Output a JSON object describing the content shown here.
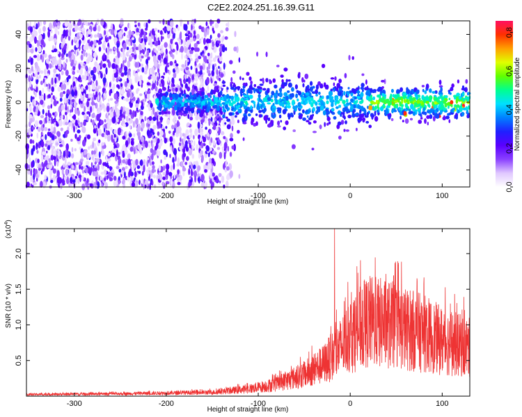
{
  "title": "C2E2.2024.251.16.39.G11",
  "chart_data": [
    {
      "type": "heatmap",
      "name": "spectrogram",
      "xlabel": "Height of straight line (km)",
      "ylabel": "Frequency (Hz)",
      "xlim": [
        -352,
        130
      ],
      "ylim": [
        -50,
        48
      ],
      "x_ticks": [
        -300,
        -200,
        -100,
        0,
        100
      ],
      "y_ticks": [
        -40,
        -20,
        0,
        20,
        40
      ],
      "colorbar": {
        "label": "Normalized spectral amplitude",
        "range": [
          0,
          0.86
        ],
        "ticks": [
          0.0,
          0.2,
          0.4,
          0.6,
          0.8
        ],
        "colors": [
          "#ffffff",
          "#e0c8ff",
          "#8a40ff",
          "#5a00ff",
          "#2020ff",
          "#0080ff",
          "#00e0ff",
          "#00ff90",
          "#60ff00",
          "#e0ff00",
          "#ffa000",
          "#ff3000",
          "#ff1060"
        ]
      },
      "regions": [
        {
          "x": [
            -352,
            -140
          ],
          "freq": [
            -50,
            48
          ],
          "description_level": 0.12
        },
        {
          "x": [
            -140,
            130
          ],
          "freq": [
            -12,
            12
          ],
          "description_level": 0.35
        }
      ]
    },
    {
      "type": "line",
      "name": "snr",
      "xlabel": "Height of straight line (km)",
      "ylabel": "SNR (10 * v/v)",
      "y_multiplier": "(x10",
      "y_multiplier_exp": "4",
      "y_multiplier_close": ")",
      "xlim": [
        -352,
        130
      ],
      "ylim": [
        0,
        23500
      ],
      "x_ticks": [
        -300,
        -200,
        -100,
        0,
        100
      ],
      "y_ticks": [
        0.5,
        1.0,
        1.5,
        2.0
      ],
      "y_tick_labels": [
        "0.5",
        "1.0",
        "1.5",
        "2.0"
      ],
      "color": "#ee3333",
      "envelope": [
        {
          "x": -352,
          "y": 350
        },
        {
          "x": -250,
          "y": 500
        },
        {
          "x": -150,
          "y": 800
        },
        {
          "x": -110,
          "y": 1500
        },
        {
          "x": -80,
          "y": 2500
        },
        {
          "x": -50,
          "y": 4500
        },
        {
          "x": -30,
          "y": 6500
        },
        {
          "x": -15,
          "y": 9000
        },
        {
          "x": 0,
          "y": 12500
        },
        {
          "x": 20,
          "y": 15500
        },
        {
          "x": 40,
          "y": 15000
        },
        {
          "x": 60,
          "y": 14000
        },
        {
          "x": 80,
          "y": 13000
        },
        {
          "x": 100,
          "y": 11500
        },
        {
          "x": 120,
          "y": 10500
        },
        {
          "x": 130,
          "y": 10000
        }
      ],
      "peak": {
        "x": -17,
        "y": 23500
      }
    }
  ]
}
